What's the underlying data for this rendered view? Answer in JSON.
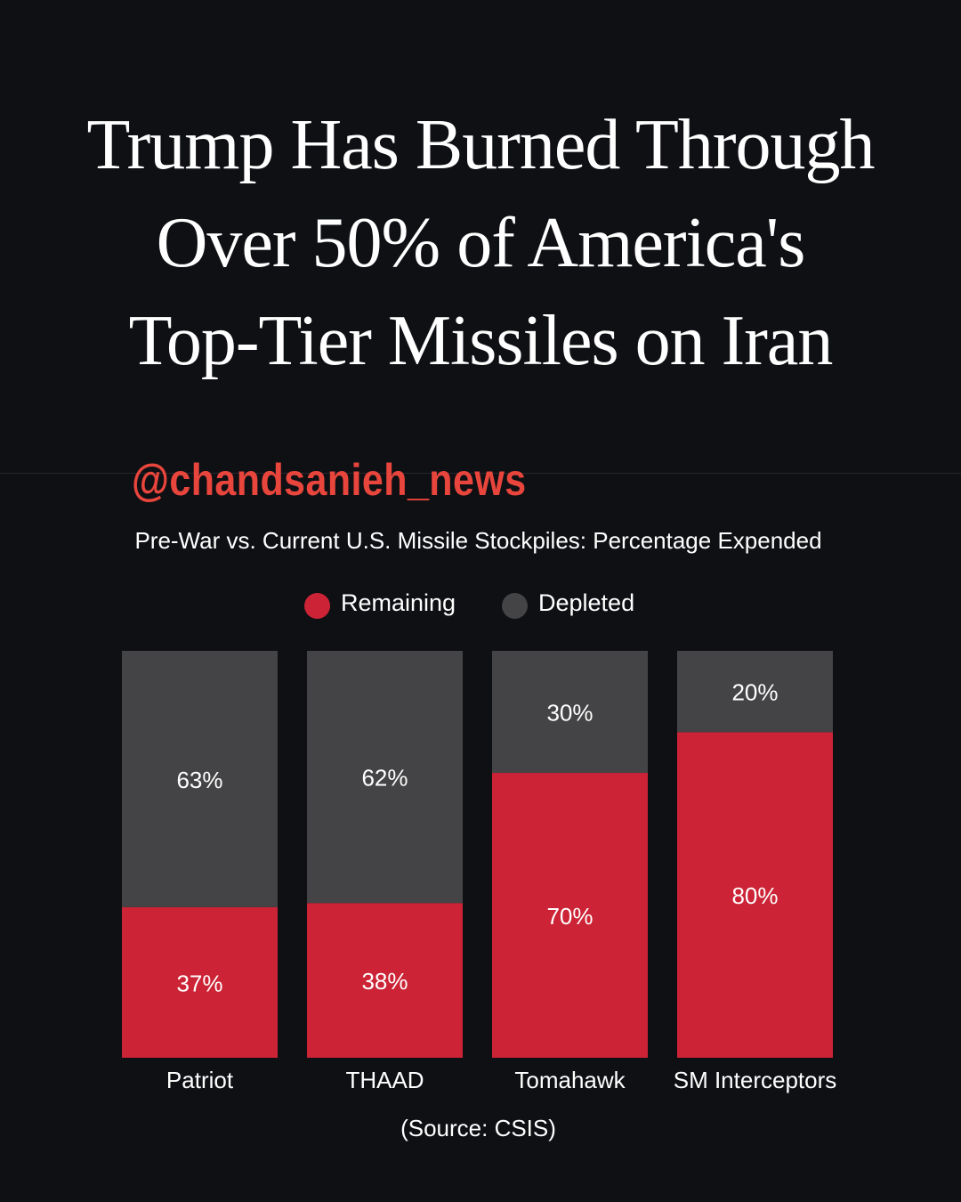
{
  "headline": {
    "lines": [
      "Trump Has Burned Through",
      "Over 50% of America's",
      "Top-Tier Missiles on Iran"
    ]
  },
  "watermark": "@chandsanieh_news",
  "chart_data": {
    "type": "bar",
    "stacked": true,
    "title": "Pre-War vs. Current U.S. Missile Stockpiles: Percentage Expended",
    "categories": [
      "Patriot",
      "THAAD",
      "Tomahawk",
      "SM Interceptors"
    ],
    "series": [
      {
        "name": "Remaining",
        "values": [
          37,
          38,
          70,
          80
        ],
        "color": "#cc2436"
      },
      {
        "name": "Depleted",
        "values": [
          63,
          62,
          30,
          20
        ],
        "color": "#444446"
      }
    ],
    "value_suffix": "%",
    "ylim": [
      0,
      100
    ],
    "grid": false,
    "legend": "top-center",
    "source": "(Source: CSIS)"
  }
}
